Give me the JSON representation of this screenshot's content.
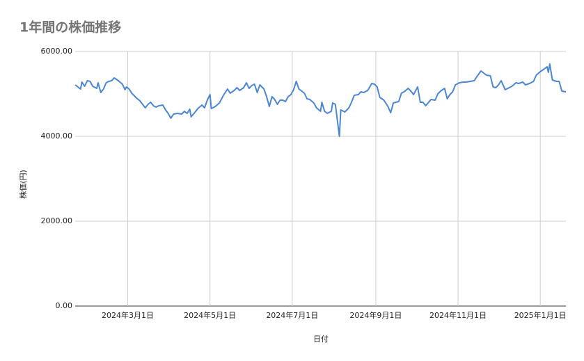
{
  "chart_data": {
    "type": "line",
    "title": "1年間の株価推移",
    "x_label": "日付",
    "y_label": "株価(円)",
    "xlim": [
      "2024-01-22",
      "2025-01-20"
    ],
    "xticks": [
      {
        "value": "2024-03-01",
        "label": "2024年3月1日"
      },
      {
        "value": "2024-05-01",
        "label": "2024年5月1日"
      },
      {
        "value": "2024-07-01",
        "label": "2024年7月1日"
      },
      {
        "value": "2024-09-01",
        "label": "2024年9月1日"
      },
      {
        "value": "2024-11-01",
        "label": "2024年11月1日"
      },
      {
        "value": "2025-01-01",
        "label": "2025年1月1日"
      }
    ],
    "ylim": [
      0,
      6000
    ],
    "yticks": [
      {
        "value": 0,
        "label": "0.00"
      },
      {
        "value": 2000,
        "label": "2000.00"
      },
      {
        "value": 4000,
        "label": "4000.00"
      },
      {
        "value": 6000,
        "label": "6000.00"
      }
    ],
    "grid": true,
    "x": [
      "2024-01-22",
      "2024-01-24",
      "2024-01-26",
      "2024-01-27",
      "2024-01-29",
      "2024-01-31",
      "2024-02-02",
      "2024-02-04",
      "2024-02-07",
      "2024-02-08",
      "2024-02-10",
      "2024-02-12",
      "2024-02-14",
      "2024-02-16",
      "2024-02-18",
      "2024-02-20",
      "2024-02-23",
      "2024-02-26",
      "2024-02-28",
      "2024-02-29",
      "2024-03-02",
      "2024-03-04",
      "2024-03-07",
      "2024-03-10",
      "2024-03-12",
      "2024-03-14",
      "2024-03-16",
      "2024-03-18",
      "2024-03-20",
      "2024-03-22",
      "2024-03-24",
      "2024-03-27",
      "2024-03-29",
      "2024-03-31",
      "2024-04-02",
      "2024-04-04",
      "2024-04-07",
      "2024-04-10",
      "2024-04-12",
      "2024-04-14",
      "2024-04-16",
      "2024-04-17",
      "2024-04-20",
      "2024-04-22",
      "2024-04-25",
      "2024-04-27",
      "2024-04-29",
      "2024-05-01",
      "2024-05-02",
      "2024-05-05",
      "2024-05-08",
      "2024-05-11",
      "2024-05-14",
      "2024-05-16",
      "2024-05-19",
      "2024-05-21",
      "2024-05-23",
      "2024-05-26",
      "2024-05-28",
      "2024-05-30",
      "2024-06-01",
      "2024-06-03",
      "2024-06-05",
      "2024-06-07",
      "2024-06-10",
      "2024-06-12",
      "2024-06-14",
      "2024-06-16",
      "2024-06-18",
      "2024-06-20",
      "2024-06-22",
      "2024-06-24",
      "2024-06-26",
      "2024-06-28",
      "2024-06-30",
      "2024-07-02",
      "2024-07-04",
      "2024-07-06",
      "2024-07-10",
      "2024-07-12",
      "2024-07-14",
      "2024-07-17",
      "2024-07-19",
      "2024-07-22",
      "2024-07-23",
      "2024-07-25",
      "2024-07-27",
      "2024-07-30",
      "2024-07-31",
      "2024-08-02",
      "2024-08-05",
      "2024-08-06",
      "2024-08-09",
      "2024-08-12",
      "2024-08-14",
      "2024-08-16",
      "2024-08-19",
      "2024-08-21",
      "2024-08-23",
      "2024-08-26",
      "2024-08-29",
      "2024-08-31",
      "2024-09-02",
      "2024-09-04",
      "2024-09-07",
      "2024-09-10",
      "2024-09-12",
      "2024-09-14",
      "2024-09-18",
      "2024-09-20",
      "2024-09-22",
      "2024-09-25",
      "2024-09-27",
      "2024-09-29",
      "2024-10-02",
      "2024-10-04",
      "2024-10-06",
      "2024-10-08",
      "2024-10-12",
      "2024-10-15",
      "2024-10-17",
      "2024-10-19",
      "2024-10-22",
      "2024-10-24",
      "2024-10-26",
      "2024-10-28",
      "2024-10-30",
      "2024-11-02",
      "2024-11-05",
      "2024-11-07",
      "2024-11-10",
      "2024-11-13",
      "2024-11-15",
      "2024-11-18",
      "2024-11-20",
      "2024-11-22",
      "2024-11-25",
      "2024-11-27",
      "2024-11-29",
      "2024-12-01",
      "2024-12-03",
      "2024-12-06",
      "2024-12-08",
      "2024-12-11",
      "2024-12-14",
      "2024-12-16",
      "2024-12-19",
      "2024-12-21",
      "2024-12-24",
      "2024-12-27",
      "2024-12-29",
      "2025-01-01",
      "2025-01-04",
      "2025-01-06",
      "2025-01-07",
      "2025-01-08",
      "2025-01-10",
      "2025-01-13",
      "2025-01-15",
      "2025-01-17",
      "2025-01-20"
    ],
    "series": [
      {
        "name": "株価(円)",
        "color": "#4a86d4",
        "values": [
          5213,
          5164,
          5115,
          5279,
          5180,
          5311,
          5295,
          5180,
          5131,
          5262,
          5033,
          5115,
          5262,
          5295,
          5311,
          5377,
          5311,
          5230,
          5098,
          5164,
          5115,
          5016,
          4918,
          4836,
          4754,
          4672,
          4754,
          4803,
          4721,
          4689,
          4721,
          4738,
          4623,
          4541,
          4426,
          4525,
          4541,
          4525,
          4590,
          4541,
          4639,
          4459,
          4574,
          4656,
          4738,
          4672,
          4852,
          4984,
          4656,
          4705,
          4787,
          4967,
          5115,
          5016,
          5082,
          5147,
          5082,
          5147,
          5262,
          5131,
          5197,
          5230,
          5033,
          5213,
          5115,
          4934,
          4705,
          4934,
          4869,
          4754,
          4852,
          4852,
          4820,
          4934,
          4984,
          5098,
          5295,
          5115,
          5016,
          4885,
          4869,
          4787,
          4672,
          4590,
          4803,
          4590,
          4541,
          4590,
          4787,
          4754,
          4000,
          4623,
          4574,
          4672,
          4803,
          4967,
          4984,
          5049,
          5033,
          5082,
          5246,
          5230,
          5164,
          4918,
          4852,
          4705,
          4557,
          4787,
          4820,
          5016,
          5049,
          5131,
          5066,
          4984,
          5164,
          4803,
          4803,
          4721,
          4869,
          4852,
          5000,
          5066,
          5131,
          4885,
          4984,
          5049,
          5213,
          5262,
          5279,
          5279,
          5295,
          5311,
          5410,
          5541,
          5492,
          5443,
          5426,
          5164,
          5147,
          5213,
          5311,
          5098,
          5131,
          5180,
          5262,
          5246,
          5279,
          5213,
          5246,
          5295,
          5443,
          5525,
          5590,
          5639,
          5508,
          5705,
          5328,
          5295,
          5295,
          5066,
          5049
        ]
      }
    ]
  }
}
